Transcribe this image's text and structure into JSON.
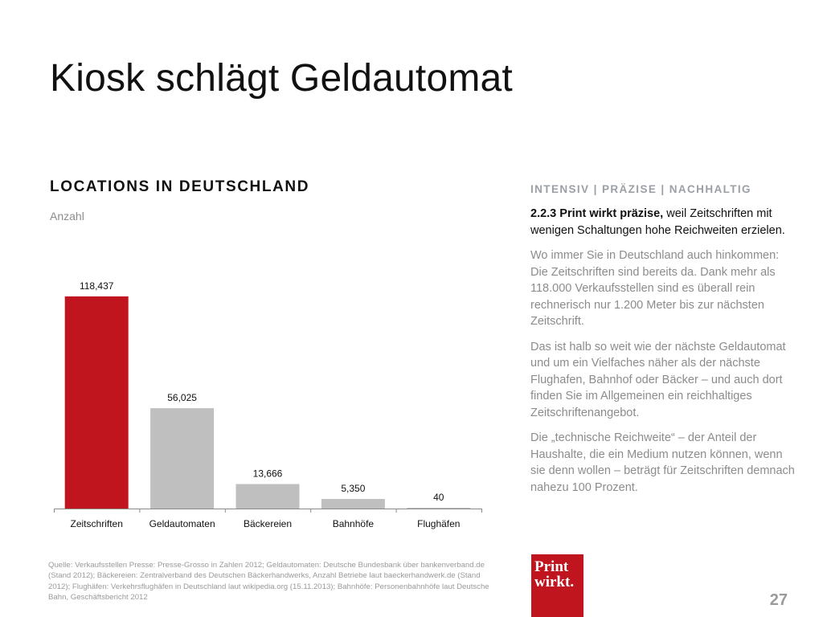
{
  "slide": {
    "title": "Kiosk schlägt Geldautomat",
    "page_number": "27"
  },
  "chart_heading": "LOCATIONS IN DEUTSCHLAND",
  "chart_unit": "Anzahl",
  "chart_data": {
    "type": "bar",
    "title": "LOCATIONS IN DEUTSCHLAND",
    "ylabel": "Anzahl",
    "xlabel": "",
    "categories": [
      "Zeitschriften",
      "Geldautomaten",
      "Bäckereien",
      "Bahnhöfe",
      "Flughäfen"
    ],
    "values": [
      118437,
      56025,
      13666,
      5350,
      40
    ],
    "data_labels": [
      "118,437",
      "56,025",
      "13,666",
      "5,350",
      "40"
    ],
    "ylim": [
      0,
      135000
    ],
    "grid": false,
    "legend": "none",
    "colors": [
      "#c0141f",
      "#bfbfbf",
      "#bfbfbf",
      "#bfbfbf",
      "#bfbfbf"
    ]
  },
  "right": {
    "tagline": "INTENSIV | PRÄZISE | NACHHALTIG",
    "lead_bold": "2.2.3 Print wirkt präzise,",
    "lead_rest": " weil Zeitschriften mit wenigen Schaltungen hohe Reichweiten erzielen.",
    "paragraphs": [
      "Wo immer Sie in Deutschland auch hinkommen: Die Zeitschriften sind bereits da. Dank mehr als 118.000 Verkaufsstellen sind es überall rein rechnerisch nur 1.200 Meter bis zur nächsten Zeitschrift.",
      "Das ist halb so weit wie der nächste Geldautomat und um ein Vielfaches näher als der nächste Flughafen, Bahnhof oder Bäcker – und auch dort finden Sie im Allgemeinen ein reichhaltiges Zeitschriftenangebot.",
      "Die „technische Reichweite“ – der Anteil der Haushalte, die ein Medium nutzen können, wenn sie denn wollen – beträgt für Zeitschriften demnach nahezu 100 Prozent."
    ]
  },
  "source": "Quelle: Verkaufsstellen Presse: Presse-Grosso in Zahlen 2012; Geldautomaten: Deutsche Bundesbank über bankenverband.de (Stand 2012); Bäckereien: Zentralverband des Deutschen Bäckerhandwerks, Anzahl Betriebe laut baeckerhandwerk.de (Stand 2012); Flughäfen: Verkehrsflughäfen in Deutschland laut wikipedia.org (15.11.2013); Bahnhöfe: Personenbahnhöfe laut Deutsche Bahn, Geschäftsbericht 2012",
  "logo": {
    "line1": "Print",
    "line2": "wirkt.",
    "color": "#c0141f"
  },
  "colors": {
    "accent": "#c0141f",
    "muted": "#8c8c8c"
  }
}
